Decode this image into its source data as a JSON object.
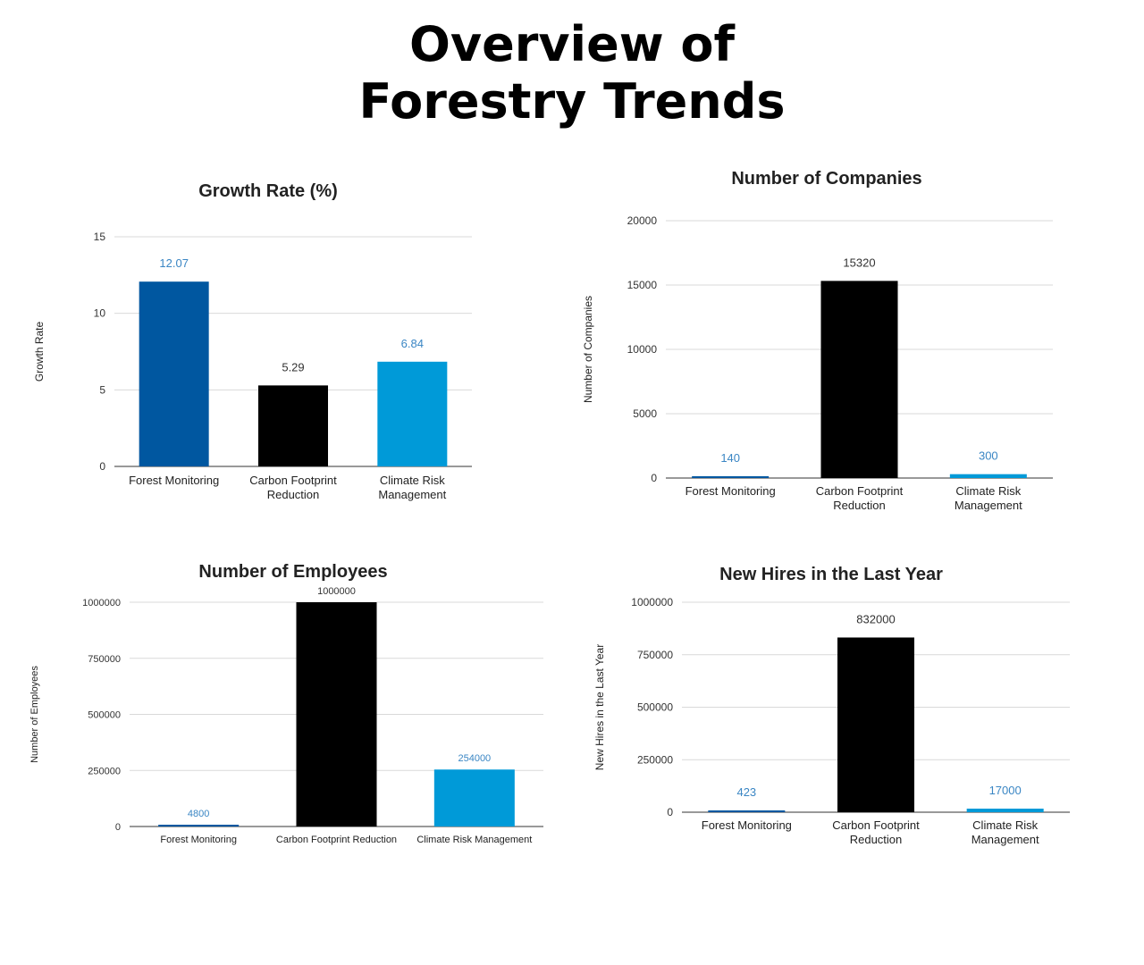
{
  "page": {
    "title_line1": "Overview of",
    "title_line2": "Forestry Trends"
  },
  "colors": {
    "blue_dark": "#0057a0",
    "black": "#000000",
    "blue_light": "#009ad8",
    "label_blue": "#3a86c4",
    "label_dark": "#333333"
  },
  "chart_data": [
    {
      "id": "growth",
      "type": "bar",
      "title": "Growth Rate (%)",
      "ylabel": "Growth Rate",
      "xlabel": "",
      "categories": [
        [
          "Forest Monitoring"
        ],
        [
          "Carbon Footprint",
          "Reduction"
        ],
        [
          "Climate Risk",
          "Management"
        ]
      ],
      "values": [
        12.07,
        5.29,
        6.84
      ],
      "value_labels": [
        "12.07",
        "5.29",
        "6.84"
      ],
      "bar_colors": [
        "#0057a0",
        "#000000",
        "#009ad8"
      ],
      "label_colors": [
        "#3a86c4",
        "#333333",
        "#3a86c4"
      ],
      "ylim": [
        0,
        15
      ],
      "yticks": [
        0,
        5,
        10,
        15
      ],
      "ytick_labels": [
        "0",
        "5",
        "10",
        "15"
      ],
      "grid": true,
      "legend": "none"
    },
    {
      "id": "companies",
      "type": "bar",
      "title": "Number of Companies",
      "ylabel": "Number of Companies",
      "xlabel": "",
      "categories": [
        [
          "Forest Monitoring"
        ],
        [
          "Carbon Footprint",
          "Reduction"
        ],
        [
          "Climate Risk",
          "Management"
        ]
      ],
      "values": [
        140,
        15320,
        300
      ],
      "value_labels": [
        "140",
        "15320",
        "300"
      ],
      "bar_colors": [
        "#0057a0",
        "#000000",
        "#009ad8"
      ],
      "label_colors": [
        "#3a86c4",
        "#333333",
        "#3a86c4"
      ],
      "ylim": [
        0,
        20000
      ],
      "yticks": [
        0,
        5000,
        10000,
        15000,
        20000
      ],
      "ytick_labels": [
        "0",
        "5000",
        "10000",
        "15000",
        "20000"
      ],
      "grid": true,
      "legend": "none"
    },
    {
      "id": "employees",
      "type": "bar",
      "title": "Number of Employees",
      "ylabel": "Number of Employees",
      "xlabel": "",
      "categories": [
        [
          "Forest Monitoring"
        ],
        [
          "Carbon Footprint Reduction"
        ],
        [
          "Climate Risk Management"
        ]
      ],
      "values": [
        4800,
        1000000,
        254000
      ],
      "value_labels": [
        "4800",
        "1000000",
        "254000"
      ],
      "bar_colors": [
        "#0057a0",
        "#000000",
        "#009ad8"
      ],
      "label_colors": [
        "#3a86c4",
        "#333333",
        "#3a86c4"
      ],
      "ylim": [
        0,
        1000000
      ],
      "yticks": [
        0,
        250000,
        500000,
        750000,
        1000000
      ],
      "ytick_labels": [
        "0",
        "250000",
        "500000",
        "750000",
        "1000000"
      ],
      "grid": true,
      "legend": "none"
    },
    {
      "id": "hires",
      "type": "bar",
      "title": "New Hires in the Last Year",
      "ylabel": "New Hires in the Last Year",
      "xlabel": "",
      "categories": [
        [
          "Forest Monitoring"
        ],
        [
          "Carbon Footprint",
          "Reduction"
        ],
        [
          "Climate Risk",
          "Management"
        ]
      ],
      "values": [
        423,
        832000,
        17000
      ],
      "value_labels": [
        "423",
        "832000",
        "17000"
      ],
      "bar_colors": [
        "#0057a0",
        "#000000",
        "#009ad8"
      ],
      "label_colors": [
        "#3a86c4",
        "#333333",
        "#3a86c4"
      ],
      "ylim": [
        0,
        1000000
      ],
      "yticks": [
        0,
        250000,
        500000,
        750000,
        1000000
      ],
      "ytick_labels": [
        "0",
        "250000",
        "500000",
        "750000",
        "1000000"
      ],
      "grid": true,
      "legend": "none"
    }
  ]
}
